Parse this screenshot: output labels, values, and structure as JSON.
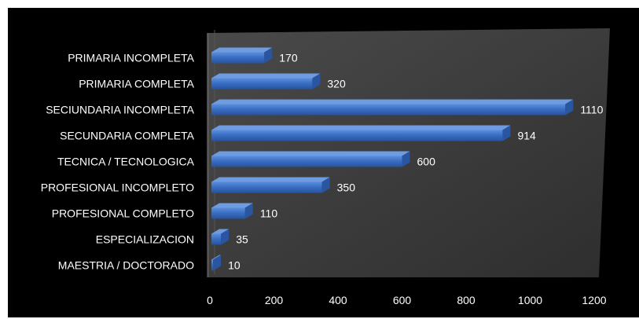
{
  "chart_data": {
    "type": "bar",
    "orientation": "horizontal",
    "categories": [
      "PRIMARIA INCOMPLETA",
      "PRIMARIA COMPLETA",
      "SECIUNDARIA INCOMPLETA",
      "SECUNDARIA COMPLETA",
      "TECNICA / TECNOLOGICA",
      "PROFESIONAL INCOMPLETO",
      "PROFESIONAL COMPLETO",
      "ESPECIALIZACION",
      "MAESTRIA / DOCTORADO"
    ],
    "values": [
      170,
      320,
      1110,
      914,
      600,
      350,
      110,
      35,
      10
    ],
    "data_labels": [
      "170",
      "320",
      "1110",
      "914",
      "600",
      "350",
      "110",
      "35",
      "10"
    ],
    "x_ticks": [
      "0",
      "200",
      "400",
      "600",
      "800",
      "1000",
      "1200"
    ],
    "xlim": [
      0,
      1200
    ],
    "title": "",
    "xlabel": "",
    "ylabel": "",
    "grid": false,
    "legend": "none",
    "colors": {
      "background": "#000000",
      "plot_wall": "#3d3d3d",
      "bar_front": "#3a6fc4",
      "bar_top": "#6f9be0",
      "bar_side": "#2a55a0",
      "text": "#ffffff"
    }
  }
}
